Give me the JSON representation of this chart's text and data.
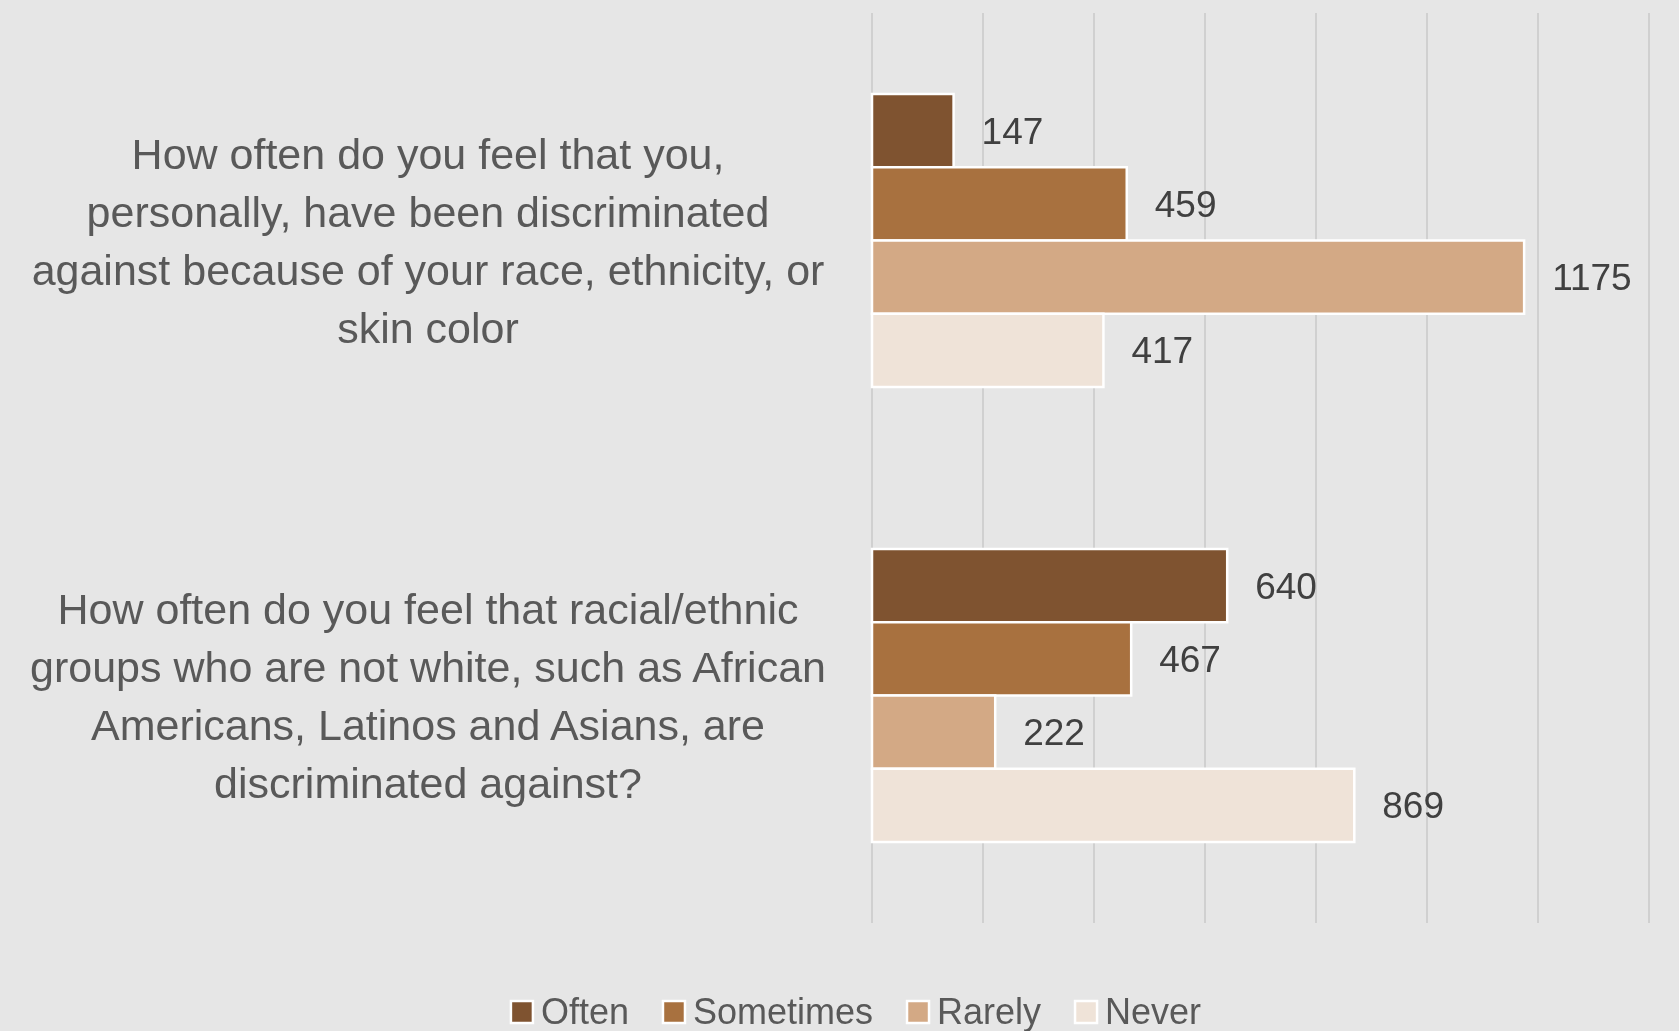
{
  "chart_data": {
    "type": "bar",
    "orientation": "horizontal",
    "categories": [
      "How often do you feel that you,\npersonally, have been discriminated\nagainst because of your race, ethnicity, or\nskin color",
      "How often do you feel that racial/ethnic\ngroups who are not white, such as African\nAmericans, Latinos and Asians, are\ndiscriminated against?"
    ],
    "series": [
      {
        "name": "Often",
        "color": "#7f5330",
        "values": [
          147,
          640
        ]
      },
      {
        "name": "Sometimes",
        "color": "#a8713f",
        "values": [
          459,
          467
        ]
      },
      {
        "name": "Rarely",
        "color": "#d3a985",
        "values": [
          1175,
          222
        ]
      },
      {
        "name": "Never",
        "color": "#efe3d8",
        "values": [
          417,
          869
        ]
      }
    ],
    "xlim": [
      0,
      1400
    ],
    "xticks": [
      {
        "value": 0,
        "label": null
      },
      {
        "value": 200,
        "label": null
      },
      {
        "value": 400,
        "label": null
      },
      {
        "value": 600,
        "label": null
      },
      {
        "value": 800,
        "label": null
      },
      {
        "value": 1000,
        "label": null
      },
      {
        "value": 1200,
        "label": null
      },
      {
        "value": 1400,
        "label": null
      }
    ],
    "grid": "x",
    "tick_labels": "y",
    "legend": "bottom",
    "data_labels": true
  }
}
